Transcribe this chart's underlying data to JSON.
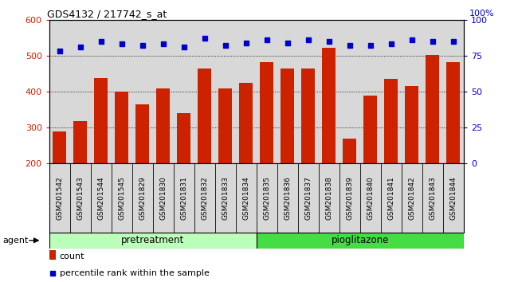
{
  "title": "GDS4132 / 217742_s_at",
  "samples": [
    "GSM201542",
    "GSM201543",
    "GSM201544",
    "GSM201545",
    "GSM201829",
    "GSM201830",
    "GSM201831",
    "GSM201832",
    "GSM201833",
    "GSM201834",
    "GSM201835",
    "GSM201836",
    "GSM201837",
    "GSM201838",
    "GSM201839",
    "GSM201840",
    "GSM201841",
    "GSM201842",
    "GSM201843",
    "GSM201844"
  ],
  "bar_values": [
    290,
    318,
    437,
    400,
    365,
    410,
    340,
    465,
    410,
    425,
    482,
    465,
    465,
    522,
    270,
    390,
    435,
    415,
    503,
    482
  ],
  "percentile_values": [
    78,
    81,
    85,
    83,
    82,
    83,
    81,
    87,
    82,
    84,
    86,
    84,
    86,
    85,
    82,
    82,
    83,
    86,
    85,
    85
  ],
  "pretreatment_count": 10,
  "pioglitazone_count": 10,
  "bar_color": "#cc2200",
  "dot_color": "#0000cc",
  "ylim_left": [
    200,
    600
  ],
  "ylim_right": [
    0,
    100
  ],
  "yticks_left": [
    200,
    300,
    400,
    500,
    600
  ],
  "yticks_right": [
    0,
    25,
    50,
    75,
    100
  ],
  "grid_values": [
    300,
    400,
    500
  ],
  "pretreatment_color": "#bbffbb",
  "pioglitazone_color": "#44dd44",
  "agent_label": "agent",
  "xlabel_pretreatment": "pretreatment",
  "xlabel_pioglitazone": "pioglitazone",
  "legend_count": "count",
  "legend_percentile": "percentile rank within the sample",
  "background_color": "#d8d8d8",
  "right_axis_label": "100%"
}
